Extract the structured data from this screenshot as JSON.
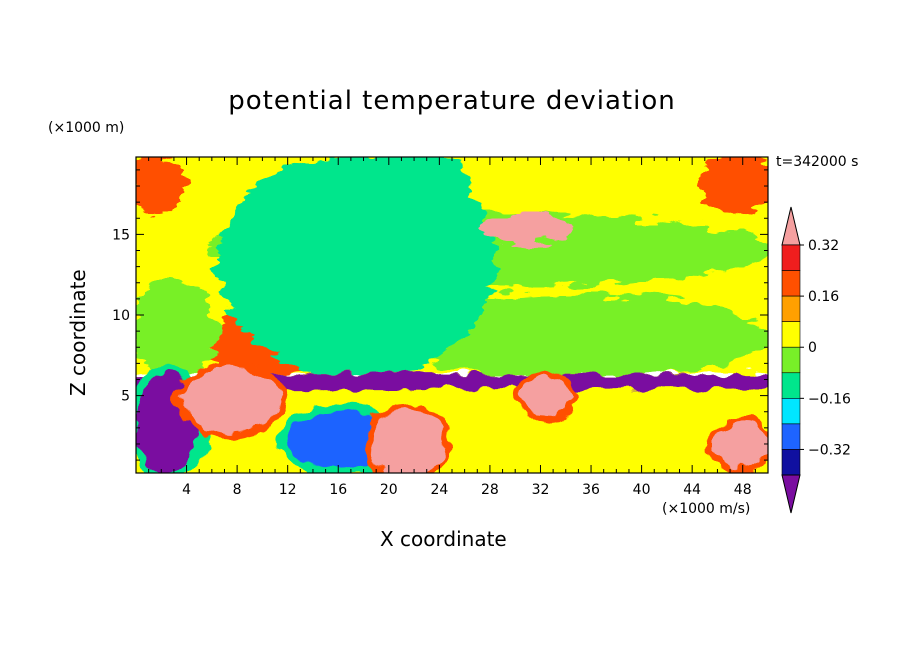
{
  "chart_data": {
    "type": "heatmap",
    "title": "potential temperature deviation",
    "xlabel": "X coordinate",
    "ylabel": "Z coordinate",
    "x_unit": "(×1000 m/s)",
    "y_unit": "(×1000 m)",
    "time_label": "t=342000 s",
    "xlim": [
      0,
      50
    ],
    "ylim": [
      0.2,
      19.8
    ],
    "x_ticks": [
      "4",
      "8",
      "12",
      "16",
      "20",
      "24",
      "28",
      "32",
      "36",
      "40",
      "44",
      "48"
    ],
    "y_ticks": [
      "5",
      "10",
      "15"
    ],
    "colorbar": {
      "levels": [
        -0.48,
        -0.4,
        -0.32,
        -0.24,
        -0.16,
        -0.08,
        0,
        0.08,
        0.16,
        0.24,
        0.32,
        0.4
      ],
      "tick_labels": [
        "0.32",
        "0.16",
        "0",
        "−0.16",
        "−0.32"
      ],
      "colors": [
        "#7a0da0",
        "#1010a0",
        "#1e64ff",
        "#00e6ff",
        "#00e68c",
        "#78f028",
        "#ffff00",
        "#ffa000",
        "#ff5000",
        "#f01e1e",
        "#f5a0a0"
      ]
    },
    "fields": {
      "upper_layer": {
        "base_level": "0",
        "regions": [
          {
            "level": "0.16",
            "x": [
              0,
              3.5
            ],
            "y": [
              16.5,
              19.8
            ]
          },
          {
            "level": "0.16",
            "x": [
              45,
              50
            ],
            "y": [
              16.5,
              19.8
            ]
          },
          {
            "level": "0.16",
            "x": [
              6,
              14
            ],
            "y": [
              6.3,
              10
            ]
          },
          {
            "level": "-0.08",
            "x": [
              0,
              6
            ],
            "y": [
              6.3,
              12
            ]
          },
          {
            "level": "-0.08",
            "x": [
              20,
              50
            ],
            "y": [
              6.3,
              11
            ]
          },
          {
            "level": "-0.08",
            "x": [
              6,
              50
            ],
            "y": [
              12,
              16
            ]
          },
          {
            "level": "-0.16",
            "x": [
              7,
              28
            ],
            "y": [
              6.3,
              19.8
            ]
          },
          {
            "level": "-0.16",
            "x": [
              20,
              26
            ],
            "y": [
              16,
              19.8
            ]
          },
          {
            "level": "0.4",
            "x": [
              28,
              34
            ],
            "y": [
              14.5,
              16
            ]
          }
        ]
      },
      "lower_layer": {
        "range_y": [
          0.2,
          6.3
        ],
        "regions": [
          {
            "level": "-0.48",
            "x": [
              0,
              5
            ],
            "y": [
              0.2,
              6.3
            ]
          },
          {
            "level": "-0.32",
            "x": [
              12,
              20
            ],
            "y": [
              0.5,
              4
            ]
          },
          {
            "level": "0.4",
            "x": [
              4,
              11
            ],
            "y": [
              3,
              6.5
            ]
          },
          {
            "level": "0.4",
            "x": [
              19,
              24
            ],
            "y": [
              0.2,
              4
            ]
          },
          {
            "level": "0.4",
            "x": [
              31,
              34
            ],
            "y": [
              4,
              6
            ]
          },
          {
            "level": "0.4",
            "x": [
              46,
              50
            ],
            "y": [
              1,
              3
            ]
          }
        ]
      }
    }
  }
}
